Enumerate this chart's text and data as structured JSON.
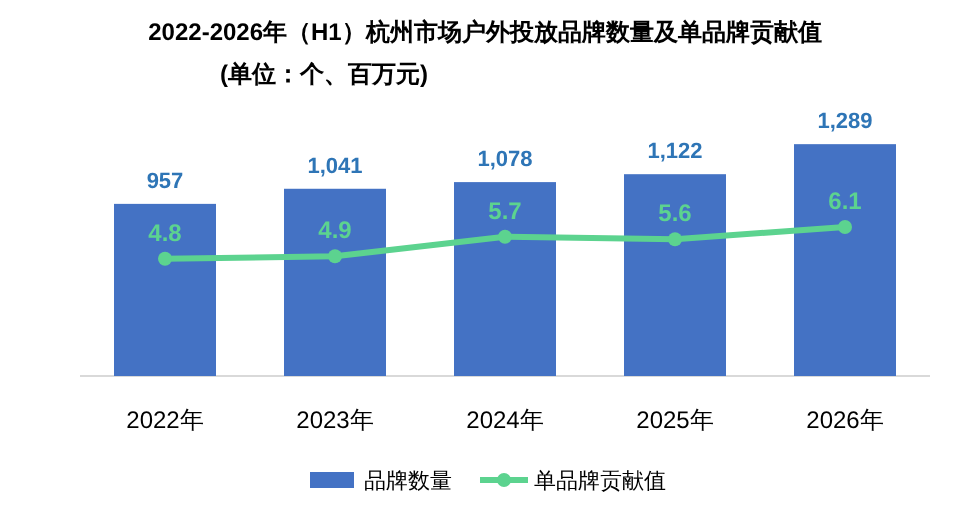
{
  "chart_data": {
    "type": "bar",
    "title": "2022-2026年（H1）杭州市场户外投放品牌数量及单品牌贡献值",
    "subtitle": "(单位：个、百万元)",
    "categories": [
      "2022年",
      "2023年",
      "2024年",
      "2025年",
      "2026年"
    ],
    "series": [
      {
        "name": "品牌数量",
        "color": "#4472c4",
        "values": [
          957,
          1041,
          1078,
          1122,
          1289
        ],
        "value_labels": [
          "957",
          "1,041",
          "1,078",
          "1,122",
          "1,289"
        ]
      },
      {
        "name": "单品牌贡献值",
        "type": "line",
        "axis": "y2",
        "color": "#5cd38f",
        "marker": "circle",
        "values": [
          4.8,
          4.9,
          5.7,
          5.6,
          6.1
        ]
      }
    ],
    "data_labels": true,
    "legend": "bottom",
    "grid": false,
    "tick_labels": "x"
  }
}
